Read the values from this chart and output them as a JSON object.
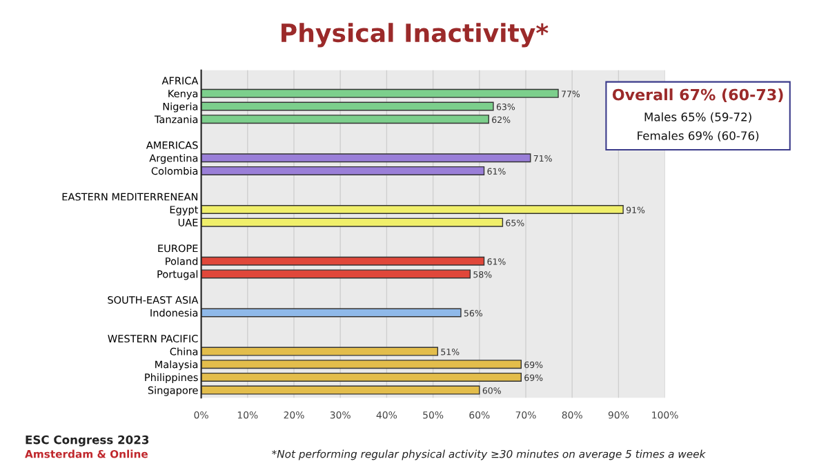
{
  "chart_data": {
    "type": "bar",
    "orientation": "horizontal",
    "title": "Physical Inactivity*",
    "categories": [
      "AFRICA",
      "Kenya",
      "Nigeria",
      "Tanzania",
      null,
      "AMERICAS",
      "Argentina",
      "Colombia",
      null,
      "EASTERN MEDITERRENEAN",
      "Egypt",
      "UAE",
      null,
      "EUROPE",
      "Poland",
      "Portugal",
      null,
      "SOUTH-EAST ASIA",
      "Indonesia",
      null,
      "WESTERN PACIFIC",
      "China",
      "Malaysia",
      "Philippines",
      "Singapore"
    ],
    "values": [
      null,
      77,
      63,
      62,
      null,
      null,
      71,
      61,
      null,
      null,
      91,
      65,
      null,
      null,
      61,
      58,
      null,
      null,
      56,
      null,
      null,
      51,
      69,
      69,
      60
    ],
    "colors": [
      null,
      "#7ccf8c",
      "#7ccf8c",
      "#7ccf8c",
      null,
      null,
      "#9a7fd8",
      "#9a7fd8",
      null,
      null,
      "#f0ef6a",
      "#f0ef6a",
      null,
      null,
      "#e0473a",
      "#e0473a",
      null,
      null,
      "#8fb9e9",
      null,
      null,
      "#e3bd4b",
      "#e3bd4b",
      "#e3bd4b",
      "#e3bd4b"
    ],
    "value_labels": [
      null,
      "77%",
      "63%",
      "62%",
      null,
      null,
      "71%",
      "61%",
      null,
      null,
      "91%",
      "65%",
      null,
      null,
      "61%",
      "58%",
      null,
      null,
      "56%",
      null,
      null,
      "51%",
      "69%",
      "69%",
      "60%"
    ],
    "xlim": [
      0,
      100
    ],
    "xticks": [
      {
        "value": 0,
        "label": "0%"
      },
      {
        "value": 10,
        "label": "10%"
      },
      {
        "value": 20,
        "label": "20%"
      },
      {
        "value": 30,
        "label": "30%"
      },
      {
        "value": 40,
        "label": "40%"
      },
      {
        "value": 50,
        "label": "50%"
      },
      {
        "value": 60,
        "label": "60%"
      },
      {
        "value": 70,
        "label": "70%"
      },
      {
        "value": 80,
        "label": "80%"
      },
      {
        "value": 90,
        "label": "90%"
      },
      {
        "value": 100,
        "label": "100%"
      }
    ],
    "grid": "x",
    "annotations": [
      "Overall 67% (60-73)",
      "Males 65% (59-72)",
      "Females 69% (60-76)",
      "*Not performing regular physical activity ≥30 minutes on average 5 times a week",
      "ESC Congress 2023",
      "Amsterdam & Online"
    ]
  }
}
